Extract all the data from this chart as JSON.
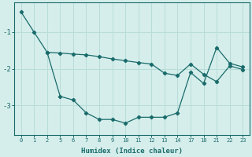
{
  "xlabel": "Humidex (Indice chaleur)",
  "background_color": "#d5eeeb",
  "line_color": "#1a6b6b",
  "grid_color": "#b8ddd9",
  "xtick_labels": [
    "0",
    "1",
    "2",
    "5",
    "6",
    "7",
    "8",
    "9",
    "10",
    "11",
    "12",
    "13",
    "14",
    "17",
    "18",
    "21",
    "22",
    "23"
  ],
  "line1_x": [
    0,
    1,
    2,
    3,
    4,
    5,
    6,
    7,
    8,
    9,
    10,
    11,
    12,
    13,
    14,
    15,
    16,
    17
  ],
  "line1_y": [
    -0.45,
    -1.0,
    -1.55,
    -2.75,
    -2.85,
    -3.2,
    -3.38,
    -3.38,
    -3.48,
    -3.32,
    -3.32,
    -3.32,
    -3.2,
    -2.1,
    -2.4,
    -1.42,
    -1.85,
    -1.95
  ],
  "line2_x": [
    2,
    3,
    4,
    5,
    6,
    7,
    8,
    9,
    10,
    11,
    12,
    13,
    14,
    15,
    16,
    17
  ],
  "line2_y": [
    -1.55,
    -1.57,
    -1.6,
    -1.62,
    -1.67,
    -1.73,
    -1.78,
    -1.83,
    -1.87,
    -2.12,
    -2.18,
    -1.87,
    -2.15,
    -2.35,
    -1.92,
    -2.02
  ],
  "yticks": [
    -1,
    -2,
    -3
  ],
  "ylim": [
    -3.8,
    -0.2
  ],
  "xlim": [
    -0.5,
    17.5
  ],
  "n_xticks": 18
}
